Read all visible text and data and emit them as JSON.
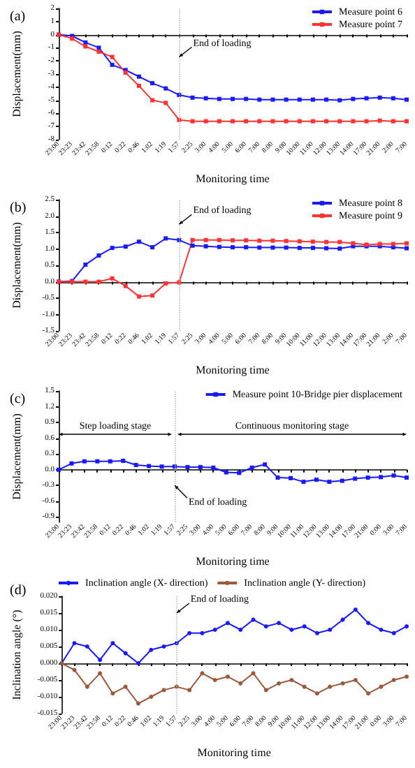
{
  "chart_data": [
    {
      "type": "line",
      "title": "(a)",
      "xlabel": "Monitoring time",
      "ylabel": "Displacement(mm)",
      "marker": "square",
      "legend": "top right",
      "categories": [
        "23:00",
        "23:23",
        "23:42",
        "23:58",
        "0:12",
        "0:22",
        "0:46",
        "1:02",
        "1:19",
        "1:57",
        "2:25",
        "3:00",
        "4:00",
        "5:00",
        "6:00",
        "7:00",
        "8:00",
        "9:00",
        "10:00",
        "11:00",
        "12:00",
        "13:00",
        "14:00",
        "17:00",
        "21:00",
        "2:00",
        "7:00"
      ],
      "series": [
        {
          "name": "Measure point 6",
          "color": "#1a1aff",
          "values": [
            0,
            -0.1,
            -0.6,
            -1.0,
            -2.3,
            -2.7,
            -3.2,
            -3.7,
            -4.1,
            -4.6,
            -4.8,
            -4.85,
            -4.9,
            -4.9,
            -4.9,
            -4.95,
            -4.95,
            -4.95,
            -4.95,
            -4.95,
            -4.95,
            -5.0,
            -4.9,
            -4.85,
            -4.8,
            -4.85,
            -4.95
          ]
        },
        {
          "name": "Measure point 7",
          "color": "#ff3333",
          "values": [
            0,
            -0.3,
            -0.9,
            -1.3,
            -1.7,
            -2.9,
            -3.9,
            -5.0,
            -5.2,
            -6.5,
            -6.6,
            -6.6,
            -6.6,
            -6.6,
            -6.6,
            -6.6,
            -6.6,
            -6.6,
            -6.6,
            -6.6,
            -6.6,
            -6.6,
            -6.6,
            -6.6,
            -6.55,
            -6.6,
            -6.6
          ]
        }
      ],
      "ylim": [
        -8,
        2
      ],
      "yticks": [
        -8,
        -7,
        -6,
        -5,
        -4,
        -3,
        -2,
        -1,
        0,
        1,
        2
      ],
      "ref_lines": [
        {
          "axis": "x",
          "value": "1:57",
          "color": "#bbbbbb",
          "line_style": "dotted"
        }
      ],
      "annotations": [
        {
          "text": "End of loading",
          "x": "1:57",
          "y": -1.7
        }
      ]
    },
    {
      "type": "line",
      "title": "(b)",
      "xlabel": "Monitoring time",
      "ylabel": "Displacement(mm)",
      "marker": "square",
      "legend": "top right",
      "categories": [
        "23:00",
        "23:23",
        "23:42",
        "23:58",
        "0:12",
        "0:22",
        "0:46",
        "1:02",
        "1:19",
        "1:57",
        "2:25",
        "3:00",
        "4:00",
        "5:00",
        "6:00",
        "7:00",
        "8:00",
        "9:00",
        "10:00",
        "11:00",
        "12:00",
        "13:00",
        "14:00",
        "17:00",
        "21:00",
        "2:00",
        "7:00"
      ],
      "series": [
        {
          "name": "Measure point 8",
          "color": "#1a1aff",
          "values": [
            0,
            0.02,
            0.52,
            0.8,
            1.03,
            1.07,
            1.22,
            1.05,
            1.32,
            1.27,
            1.1,
            1.08,
            1.06,
            1.05,
            1.05,
            1.04,
            1.04,
            1.04,
            1.03,
            1.03,
            1.02,
            1.01,
            1.08,
            1.08,
            1.08,
            1.05,
            1.02
          ]
        },
        {
          "name": "Measure point 9",
          "color": "#ff3333",
          "values": [
            0,
            0,
            0,
            0,
            0.1,
            -0.13,
            -0.45,
            -0.42,
            -0.05,
            -0.02,
            1.27,
            1.27,
            1.27,
            1.26,
            1.26,
            1.25,
            1.25,
            1.24,
            1.23,
            1.22,
            1.21,
            1.21,
            1.17,
            1.13,
            1.15,
            1.15,
            1.17
          ]
        }
      ],
      "ylim": [
        -1.5,
        2.5
      ],
      "yticks": [
        {
          "value": -1.5,
          "label": "-1.5"
        },
        {
          "value": -1,
          "label": "-1.0"
        },
        {
          "value": -0.5,
          "label": "-0.5"
        },
        {
          "value": 0,
          "label": "0.0"
        },
        {
          "value": 0.5,
          "label": "0.5"
        },
        {
          "value": 1,
          "label": "1.0"
        },
        {
          "value": 1.5,
          "label": "1.5"
        },
        {
          "value": 2,
          "label": "2.0"
        },
        {
          "value": 2.5,
          "label": "2.5"
        }
      ],
      "ref_lines": [
        {
          "axis": "x",
          "value": "1:57",
          "color": "#bbbbbb",
          "line_style": "dotted"
        }
      ],
      "annotations": [
        {
          "text": "End of loading",
          "x": "1:57",
          "y": 1.75
        }
      ]
    },
    {
      "type": "line",
      "title": "(c)",
      "xlabel": "Monitoring time",
      "ylabel": "Displacement(mm)",
      "marker": "square",
      "legend": "top right",
      "categories": [
        "23:00",
        "23:23",
        "23:42",
        "23:58",
        "0:12",
        "0:22",
        "0:46",
        "1:02",
        "1:19",
        "1:57",
        "2:25",
        "3:00",
        "4:00",
        "5:00",
        "6:00",
        "7:00",
        "8:00",
        "9:00",
        "10:00",
        "11:00",
        "12:00",
        "13:00",
        "14:00",
        "17:00",
        "21:00",
        "0:00",
        "3:00",
        "7:00"
      ],
      "series": [
        {
          "name": "Measure point 10-Bridge pier displacement",
          "color": "#1a1aff",
          "values": [
            0,
            0.12,
            0.16,
            0.16,
            0.16,
            0.17,
            0.09,
            0.07,
            0.06,
            0.06,
            0.05,
            0.05,
            0.04,
            -0.05,
            -0.06,
            0.04,
            0.1,
            -0.15,
            -0.16,
            -0.23,
            -0.19,
            -0.23,
            -0.21,
            -0.17,
            -0.15,
            -0.14,
            -0.11,
            -0.15
          ]
        }
      ],
      "ylim": [
        -1,
        1.5
      ],
      "yticks": [
        {
          "value": -0.9,
          "label": "-0.9"
        },
        {
          "value": -0.6,
          "label": "-0.6"
        },
        {
          "value": -0.3,
          "label": "-0.3"
        },
        {
          "value": 0,
          "label": "0.0"
        },
        {
          "value": 0.3,
          "label": "0.3"
        },
        {
          "value": 0.6,
          "label": "0.6"
        },
        {
          "value": 0.9,
          "label": "0.9"
        },
        {
          "value": 1.2,
          "label": "1.2"
        },
        {
          "value": 1.5,
          "label": "1.5"
        }
      ],
      "ref_lines": [
        {
          "axis": "x",
          "value": "1:57",
          "color": "#bbbbbb",
          "line_style": "dotted"
        }
      ],
      "annotations": [
        {
          "text": "End of loading",
          "x": "1:57",
          "y": -0.3
        },
        "Step loading stage",
        "Continuous monitoring stage"
      ]
    },
    {
      "type": "line",
      "title": "(d)",
      "xlabel": "Monitoring time",
      "ylabel": "Inclination angle (°)",
      "marker": "circle",
      "legend": "top",
      "categories": [
        "23:00",
        "23:23",
        "23:42",
        "23:58",
        "0:12",
        "0:22",
        "0:46",
        "1:02",
        "1:19",
        "1:57",
        "2:25",
        "3:00",
        "4:00",
        "5:00",
        "6:00",
        "7:00",
        "8:00",
        "9:00",
        "10:00",
        "11:00",
        "12:00",
        "13:00",
        "14:00",
        "17:00",
        "21:00",
        "0:00",
        "3:00",
        "7:00"
      ],
      "series": [
        {
          "name": "Inclination angle (X- direction)",
          "color": "#1a1aff",
          "values": [
            0,
            0.006,
            0.005,
            0.001,
            0.006,
            0.003,
            0,
            0.004,
            0.005,
            0.006,
            0.009,
            0.009,
            0.01,
            0.012,
            0.01,
            0.013,
            0.011,
            0.012,
            0.01,
            0.011,
            0.009,
            0.01,
            0.013,
            0.016,
            0.012,
            0.01,
            0.009,
            0.011
          ]
        },
        {
          "name": "Inclination angle (Y- direction)",
          "color": "#9b5a3c",
          "values": [
            0,
            -0.002,
            -0.007,
            -0.003,
            -0.009,
            -0.007,
            -0.012,
            -0.01,
            -0.008,
            -0.007,
            -0.008,
            -0.003,
            -0.005,
            -0.004,
            -0.006,
            -0.003,
            -0.008,
            -0.006,
            -0.005,
            -0.007,
            -0.009,
            -0.007,
            -0.006,
            -0.005,
            -0.009,
            -0.007,
            -0.005,
            -0.004
          ]
        }
      ],
      "ylim": [
        -0.015,
        0.02
      ],
      "yticks": [
        {
          "value": -0.015,
          "label": "-0.015"
        },
        {
          "value": -0.01,
          "label": "-0.010"
        },
        {
          "value": -0.005,
          "label": "-0.005"
        },
        {
          "value": 0,
          "label": "0.000"
        },
        {
          "value": 0.005,
          "label": "0.005"
        },
        {
          "value": 0.01,
          "label": "0.010"
        },
        {
          "value": 0.015,
          "label": "0.015"
        },
        {
          "value": 0.02,
          "label": "0.020"
        }
      ],
      "ref_lines": [
        {
          "axis": "x",
          "value": "1:57",
          "color": "#bbbbbb",
          "line_style": "dotted"
        }
      ],
      "annotations": [
        {
          "text": "End of loading",
          "x": "1:57",
          "y": 0.015
        }
      ]
    }
  ]
}
